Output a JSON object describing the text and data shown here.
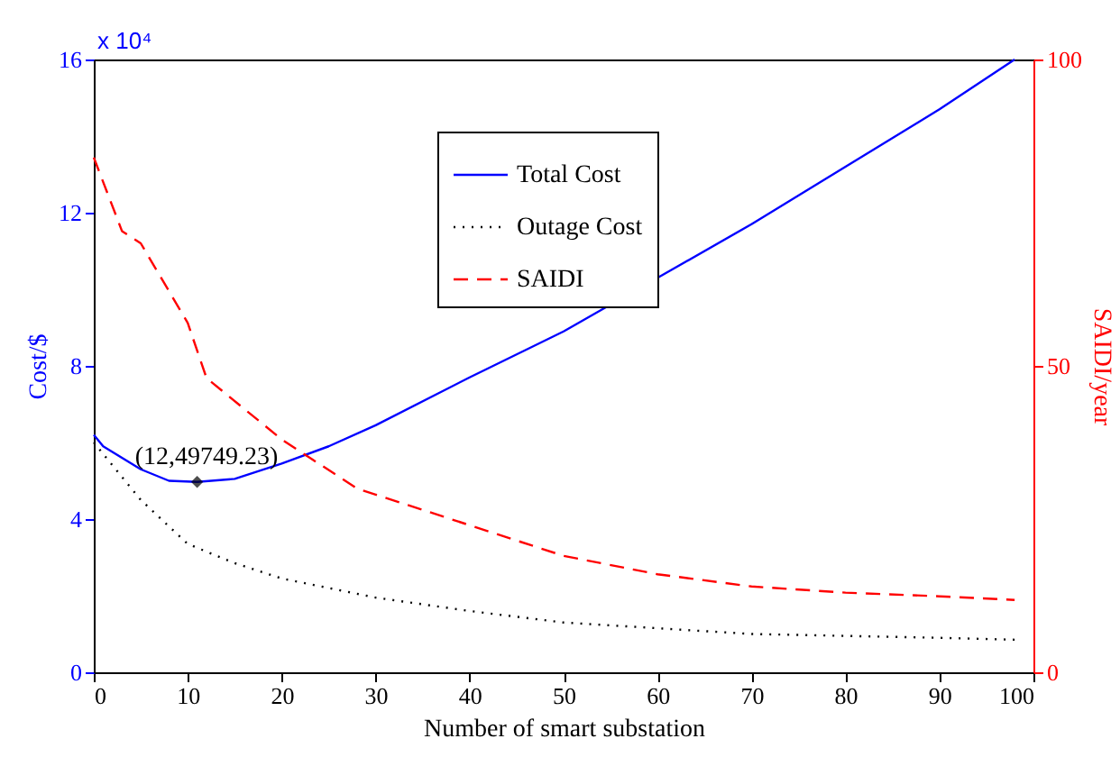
{
  "chart_data": {
    "type": "line",
    "xlabel": "Number of smart substation",
    "ylabel": "Cost/$",
    "y2label": "SAIDI/year",
    "xlim": [
      0,
      100
    ],
    "xticks": [
      0,
      10,
      20,
      30,
      40,
      50,
      60,
      70,
      80,
      90,
      100
    ],
    "ylim": [
      0,
      16
    ],
    "yticks": [
      0,
      4,
      8,
      12,
      16
    ],
    "y2lim": [
      0,
      100
    ],
    "y2ticks": [
      0,
      50,
      100
    ],
    "grid": false,
    "legend": "top",
    "marker": "none",
    "annotations": [
      "x 10⁴",
      {
        "text": "(12,49749.23)",
        "x": 12,
        "y": 4.97
      }
    ],
    "series": [
      {
        "name": "Total Cost",
        "color": "#0000ff",
        "line_style": "solid",
        "x": [
          0,
          1,
          5,
          8,
          11,
          15,
          20,
          25,
          30,
          40,
          50,
          60,
          70,
          80,
          90,
          98
        ],
        "values": [
          6.2,
          5.9,
          5.3,
          5.0,
          4.97,
          5.05,
          5.45,
          5.9,
          6.45,
          7.7,
          8.9,
          10.3,
          11.7,
          13.2,
          14.7,
          16.0
        ]
      },
      {
        "name": "Outage Cost",
        "color": "#000000",
        "line_style": "dotted",
        "x": [
          0,
          5,
          10,
          15,
          20,
          30,
          40,
          50,
          60,
          70,
          80,
          90,
          98
        ],
        "values": [
          6.0,
          4.5,
          3.35,
          2.85,
          2.45,
          1.95,
          1.6,
          1.3,
          1.15,
          1.0,
          0.95,
          0.9,
          0.85
        ]
      },
      {
        "name": "SAIDI",
        "color": "#ff0000",
        "line_style": "dashed",
        "axis": "y2",
        "x": [
          0,
          3,
          5,
          10,
          12,
          20,
          28,
          30,
          40,
          50,
          60,
          70,
          80,
          90,
          98
        ],
        "values": [
          84,
          72,
          70,
          57,
          48,
          38,
          30,
          29,
          24,
          19,
          16,
          14,
          13,
          12.4,
          11.8
        ]
      },
      {
        "type": "scatter",
        "color": "#000000",
        "marker": "diamond",
        "x": [
          11
        ],
        "values": [
          4.97
        ]
      }
    ]
  }
}
